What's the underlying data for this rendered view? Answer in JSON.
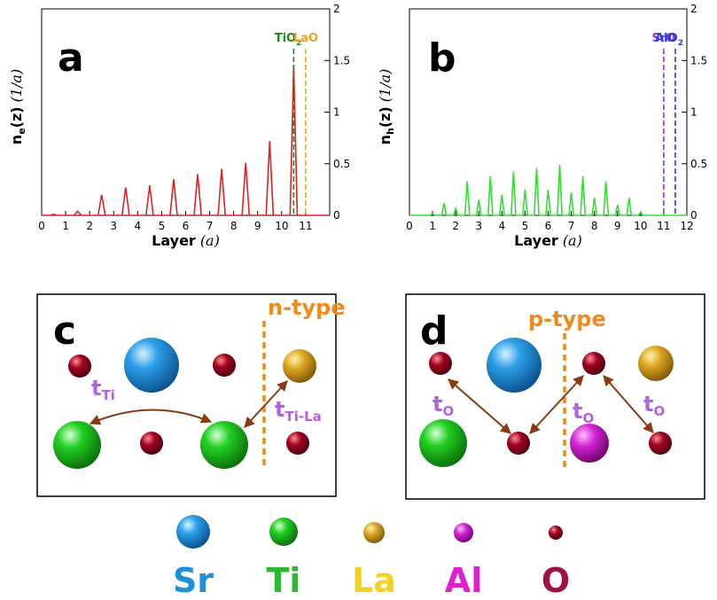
{
  "chart_data": [
    {
      "type": "line",
      "panel": "a",
      "x": [
        0,
        0.35,
        0.5,
        0.65,
        1.35,
        1.5,
        1.65,
        2.35,
        2.5,
        2.65,
        3.35,
        3.5,
        3.65,
        4.35,
        4.5,
        4.65,
        5.35,
        5.5,
        5.65,
        6.35,
        6.5,
        6.65,
        7.35,
        7.5,
        7.65,
        8.35,
        8.5,
        8.65,
        9.35,
        9.5,
        9.65,
        10.35,
        10.5,
        10.65,
        12
      ],
      "values": [
        0,
        0,
        0.01,
        0,
        0,
        0.04,
        0,
        0,
        0.2,
        0,
        0,
        0.27,
        0,
        0,
        0.29,
        0,
        0,
        0.35,
        0,
        0,
        0.4,
        0,
        0,
        0.45,
        0,
        0,
        0.51,
        0,
        0,
        0.72,
        0,
        0,
        1.45,
        0,
        0
      ],
      "color": "#e02020",
      "xlim": [
        0,
        12
      ],
      "xticks": [
        0,
        1,
        2,
        3,
        4,
        5,
        6,
        7,
        8,
        9,
        10,
        11
      ],
      "ylim": [
        0,
        2
      ],
      "yticks": [
        0,
        0.5,
        1,
        1.5,
        2
      ],
      "xlabel": {
        "text": "Layer",
        "unit": "(a)"
      },
      "ylabel": {
        "main": "n",
        "sub": "e",
        "rest": "(z)",
        "unit": "(1/a)"
      },
      "markers": [
        {
          "x": 10.5,
          "label": "TiO",
          "sub": "2",
          "color": "#1a8a1a"
        },
        {
          "x": 11,
          "label": "LaO",
          "color": "#f0a020"
        }
      ]
    },
    {
      "type": "line",
      "panel": "b",
      "x": [
        0,
        0.9,
        1,
        1.1,
        1.4,
        1.5,
        1.6,
        1.9,
        2,
        2.1,
        2.4,
        2.5,
        2.6,
        2.9,
        3,
        3.1,
        3.4,
        3.5,
        3.6,
        3.9,
        4,
        4.1,
        4.4,
        4.5,
        4.6,
        4.9,
        5,
        5.1,
        5.4,
        5.5,
        5.6,
        5.9,
        6,
        6.1,
        6.4,
        6.5,
        6.6,
        6.9,
        7,
        7.1,
        7.4,
        7.5,
        7.6,
        7.9,
        8,
        8.1,
        8.4,
        8.5,
        8.6,
        8.9,
        9,
        9.1,
        9.4,
        9.5,
        9.6,
        9.9,
        10,
        10.1,
        12
      ],
      "values": [
        0,
        0,
        0.02,
        0,
        0,
        0.12,
        0,
        0,
        0.07,
        0,
        0,
        0.33,
        0,
        0,
        0.15,
        0,
        0,
        0.38,
        0,
        0,
        0.2,
        0,
        0,
        0.42,
        0,
        0,
        0.25,
        0,
        0,
        0.46,
        0,
        0,
        0.25,
        0,
        0,
        0.49,
        0,
        0,
        0.22,
        0,
        0,
        0.38,
        0,
        0,
        0.17,
        0,
        0,
        0.33,
        0,
        0,
        0.1,
        0,
        0,
        0.17,
        0,
        0,
        0.03,
        0,
        0
      ],
      "color": "#33dd33",
      "xlim": [
        0,
        12
      ],
      "xticks": [
        0,
        1,
        2,
        3,
        4,
        5,
        6,
        7,
        8,
        9,
        10,
        11,
        12
      ],
      "ylim": [
        0,
        2
      ],
      "yticks": [
        0,
        0.5,
        1,
        1.5,
        2
      ],
      "xlabel": {
        "text": "Layer",
        "unit": "(a)"
      },
      "ylabel": {
        "main": "n",
        "sub": "h",
        "rest": "(z)",
        "unit": "(1/a)"
      },
      "markers": [
        {
          "x": 11,
          "label": "SrO",
          "color": "#9a2ad0"
        },
        {
          "x": 11.5,
          "label": "AlO",
          "sub": "2",
          "color": "#2040e0"
        }
      ]
    }
  ],
  "panels": [
    {
      "letter": "c",
      "doping": "n-type",
      "hoppings": [
        {
          "t": "t",
          "sub": "Ti"
        },
        {
          "t": "t",
          "sub": "Ti-La"
        }
      ]
    },
    {
      "letter": "d",
      "doping": "p-type",
      "hoppings": [
        {
          "t": "t",
          "sub": "O"
        },
        {
          "t": "t",
          "sub": "O"
        },
        {
          "t": "t",
          "sub": "O"
        }
      ]
    }
  ],
  "legend": [
    "Sr",
    "Ti",
    "La",
    "Al",
    "O"
  ]
}
